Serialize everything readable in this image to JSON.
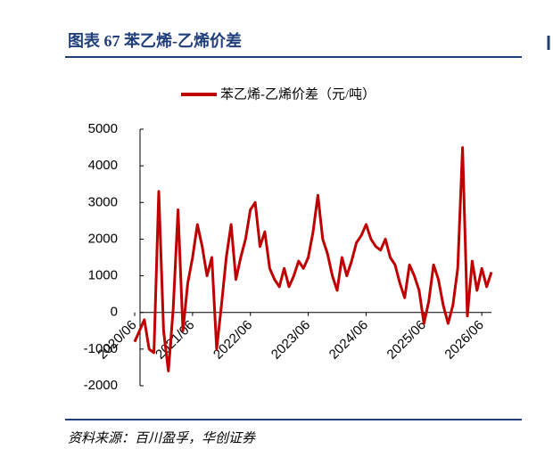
{
  "header": {
    "title": "图表 67 苯乙烯-乙烯价差"
  },
  "chart_data": {
    "type": "line",
    "series": [
      {
        "name": "苯乙烯-乙烯价差（元/吨）",
        "color": "#c00000",
        "values": [
          -800,
          -500,
          -200,
          -1000,
          -1100,
          3300,
          -500,
          -1600,
          100,
          2800,
          -500,
          800,
          1500,
          2400,
          1800,
          1000,
          1500,
          -1000,
          200,
          1500,
          2400,
          900,
          1500,
          2000,
          2800,
          3000,
          1800,
          2200,
          1200,
          900,
          700,
          1200,
          700,
          1000,
          1400,
          1200,
          1500,
          2200,
          3200,
          2000,
          1600,
          1000,
          600,
          1500,
          1000,
          1400,
          1900,
          2100,
          2400,
          2000,
          1800,
          1700,
          2000,
          1500,
          1300,
          800,
          400,
          1300,
          1000,
          600,
          -300,
          300,
          1300,
          900,
          200,
          -300,
          200,
          1200,
          4500,
          -100,
          1400,
          600,
          1200,
          700,
          1100
        ]
      }
    ],
    "categories": [
      "2020/06",
      "2020/07",
      "2020/08",
      "2020/09",
      "2020/10",
      "2020/11",
      "2020/12",
      "2021/01",
      "2021/02",
      "2021/03",
      "2021/04",
      "2021/05",
      "2021/06",
      "2021/07",
      "2021/08",
      "2021/09",
      "2021/10",
      "2021/11",
      "2021/12",
      "2022/01",
      "2022/02",
      "2022/03",
      "2022/04",
      "2022/05",
      "2022/06",
      "2022/07",
      "2022/08",
      "2022/09",
      "2022/10",
      "2022/11",
      "2022/12",
      "2023/01",
      "2023/02",
      "2023/03",
      "2023/04",
      "2023/05",
      "2023/06",
      "2023/07",
      "2023/08",
      "2023/09",
      "2023/10",
      "2023/11",
      "2023/12",
      "2024/01",
      "2024/02",
      "2024/03",
      "2024/04",
      "2024/05",
      "2024/06",
      "2024/07",
      "2024/08",
      "2024/09",
      "2024/10",
      "2024/11",
      "2024/12",
      "2025/01",
      "2025/02",
      "2025/03",
      "2025/04",
      "2025/05",
      "2025/06",
      "2025/07",
      "2025/08",
      "2025/09",
      "2025/10",
      "2025/11",
      "2025/12",
      "2026/01",
      "2026/02",
      "2026/03",
      "2026/04",
      "2026/05",
      "2026/06",
      "2026/07",
      "2026/08"
    ],
    "ylim": [
      -2000,
      5000
    ],
    "yticks": [
      -2000,
      -1000,
      0,
      1000,
      2000,
      3000,
      4000,
      5000
    ],
    "xtick_every": 12
  },
  "footer": {
    "source": "资料来源：百川盈孚，华创证券"
  }
}
